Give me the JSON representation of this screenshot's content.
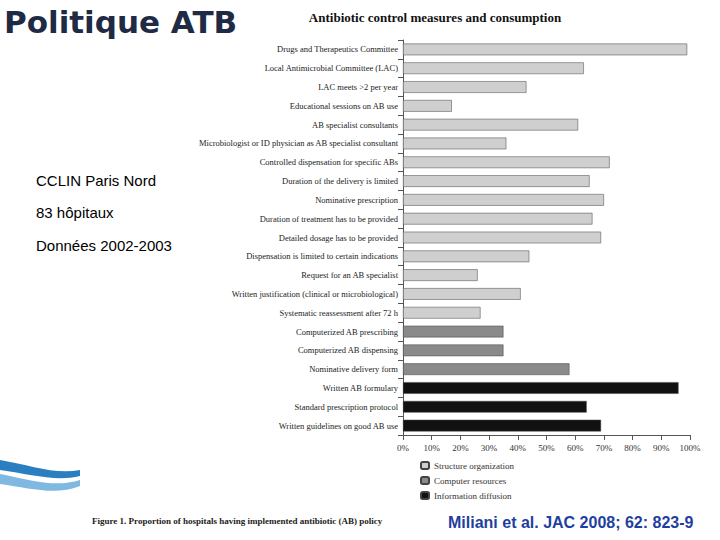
{
  "slide": {
    "heading": "Politique ATB",
    "notes": [
      "CCLIN Paris Nord",
      "83 hôpitaux",
      "Données 2002-2003"
    ],
    "caption": "Figure 1. Proportion of hospitals having implemented antibiotic (AB) policy",
    "citation": "Miliani et al. JAC 2008; 62: 823-9"
  },
  "chart_data": {
    "type": "bar",
    "title": "Antibiotic control measures and consumption",
    "orientation": "horizontal",
    "stacked": true,
    "grid": false,
    "legend": "bottom",
    "categories": [
      "Drugs and Therapeutics Committee",
      "Local Antimicrobial Committee (LAC)",
      "LAC meets >2 per year",
      "Educational sessions on AB use",
      "AB specialist consultants",
      "Microbiologist or ID physician as AB specialist consultant",
      "Controlled dispensation for specific ABs",
      "Duration of the delivery is limited",
      "Nominative prescription",
      "Duration of treatment has to be provided",
      "Detailed dosage has to be provided",
      "Dispensation is limited to certain indications",
      "Request for an AB specialist",
      "Written justification (clinical or microbiological)",
      "Systematic reassessment after 72 h",
      "Computerized AB prescribing",
      "Computerized AB dispensing",
      "Nominative delivery form",
      "Written AB formulary",
      "Standard prescription protocol",
      "Written guidelines on good AB use"
    ],
    "series": [
      {
        "name": "Structure organization",
        "color": "#cfcfcf",
        "values": [
          99,
          63,
          43,
          17,
          61,
          36,
          72,
          65,
          70,
          66,
          69,
          44,
          26,
          41,
          27,
          null,
          null,
          null,
          null,
          null,
          null
        ]
      },
      {
        "name": "Computer resources",
        "color": "#8a8a8a",
        "values": [
          null,
          null,
          null,
          null,
          null,
          null,
          null,
          null,
          null,
          null,
          null,
          null,
          null,
          null,
          null,
          35,
          35,
          58,
          null,
          null,
          null
        ]
      },
      {
        "name": "Information diffusion",
        "color": "#111111",
        "values": [
          null,
          null,
          null,
          null,
          null,
          null,
          null,
          null,
          null,
          null,
          null,
          null,
          null,
          null,
          null,
          null,
          null,
          null,
          96,
          64,
          69
        ]
      }
    ],
    "xlim": [
      0,
      100
    ],
    "xticks": [
      {
        "value": 0,
        "label": "0%"
      },
      {
        "value": 10,
        "label": "10%"
      },
      {
        "value": 20,
        "label": "20%"
      },
      {
        "value": 30,
        "label": "30%"
      },
      {
        "value": 40,
        "label": "40%"
      },
      {
        "value": 50,
        "label": "50%"
      },
      {
        "value": 60,
        "label": "60%"
      },
      {
        "value": 70,
        "label": "70%"
      },
      {
        "value": 80,
        "label": "80%"
      },
      {
        "value": 90,
        "label": "90%"
      },
      {
        "value": 100,
        "label": "100%"
      }
    ]
  }
}
